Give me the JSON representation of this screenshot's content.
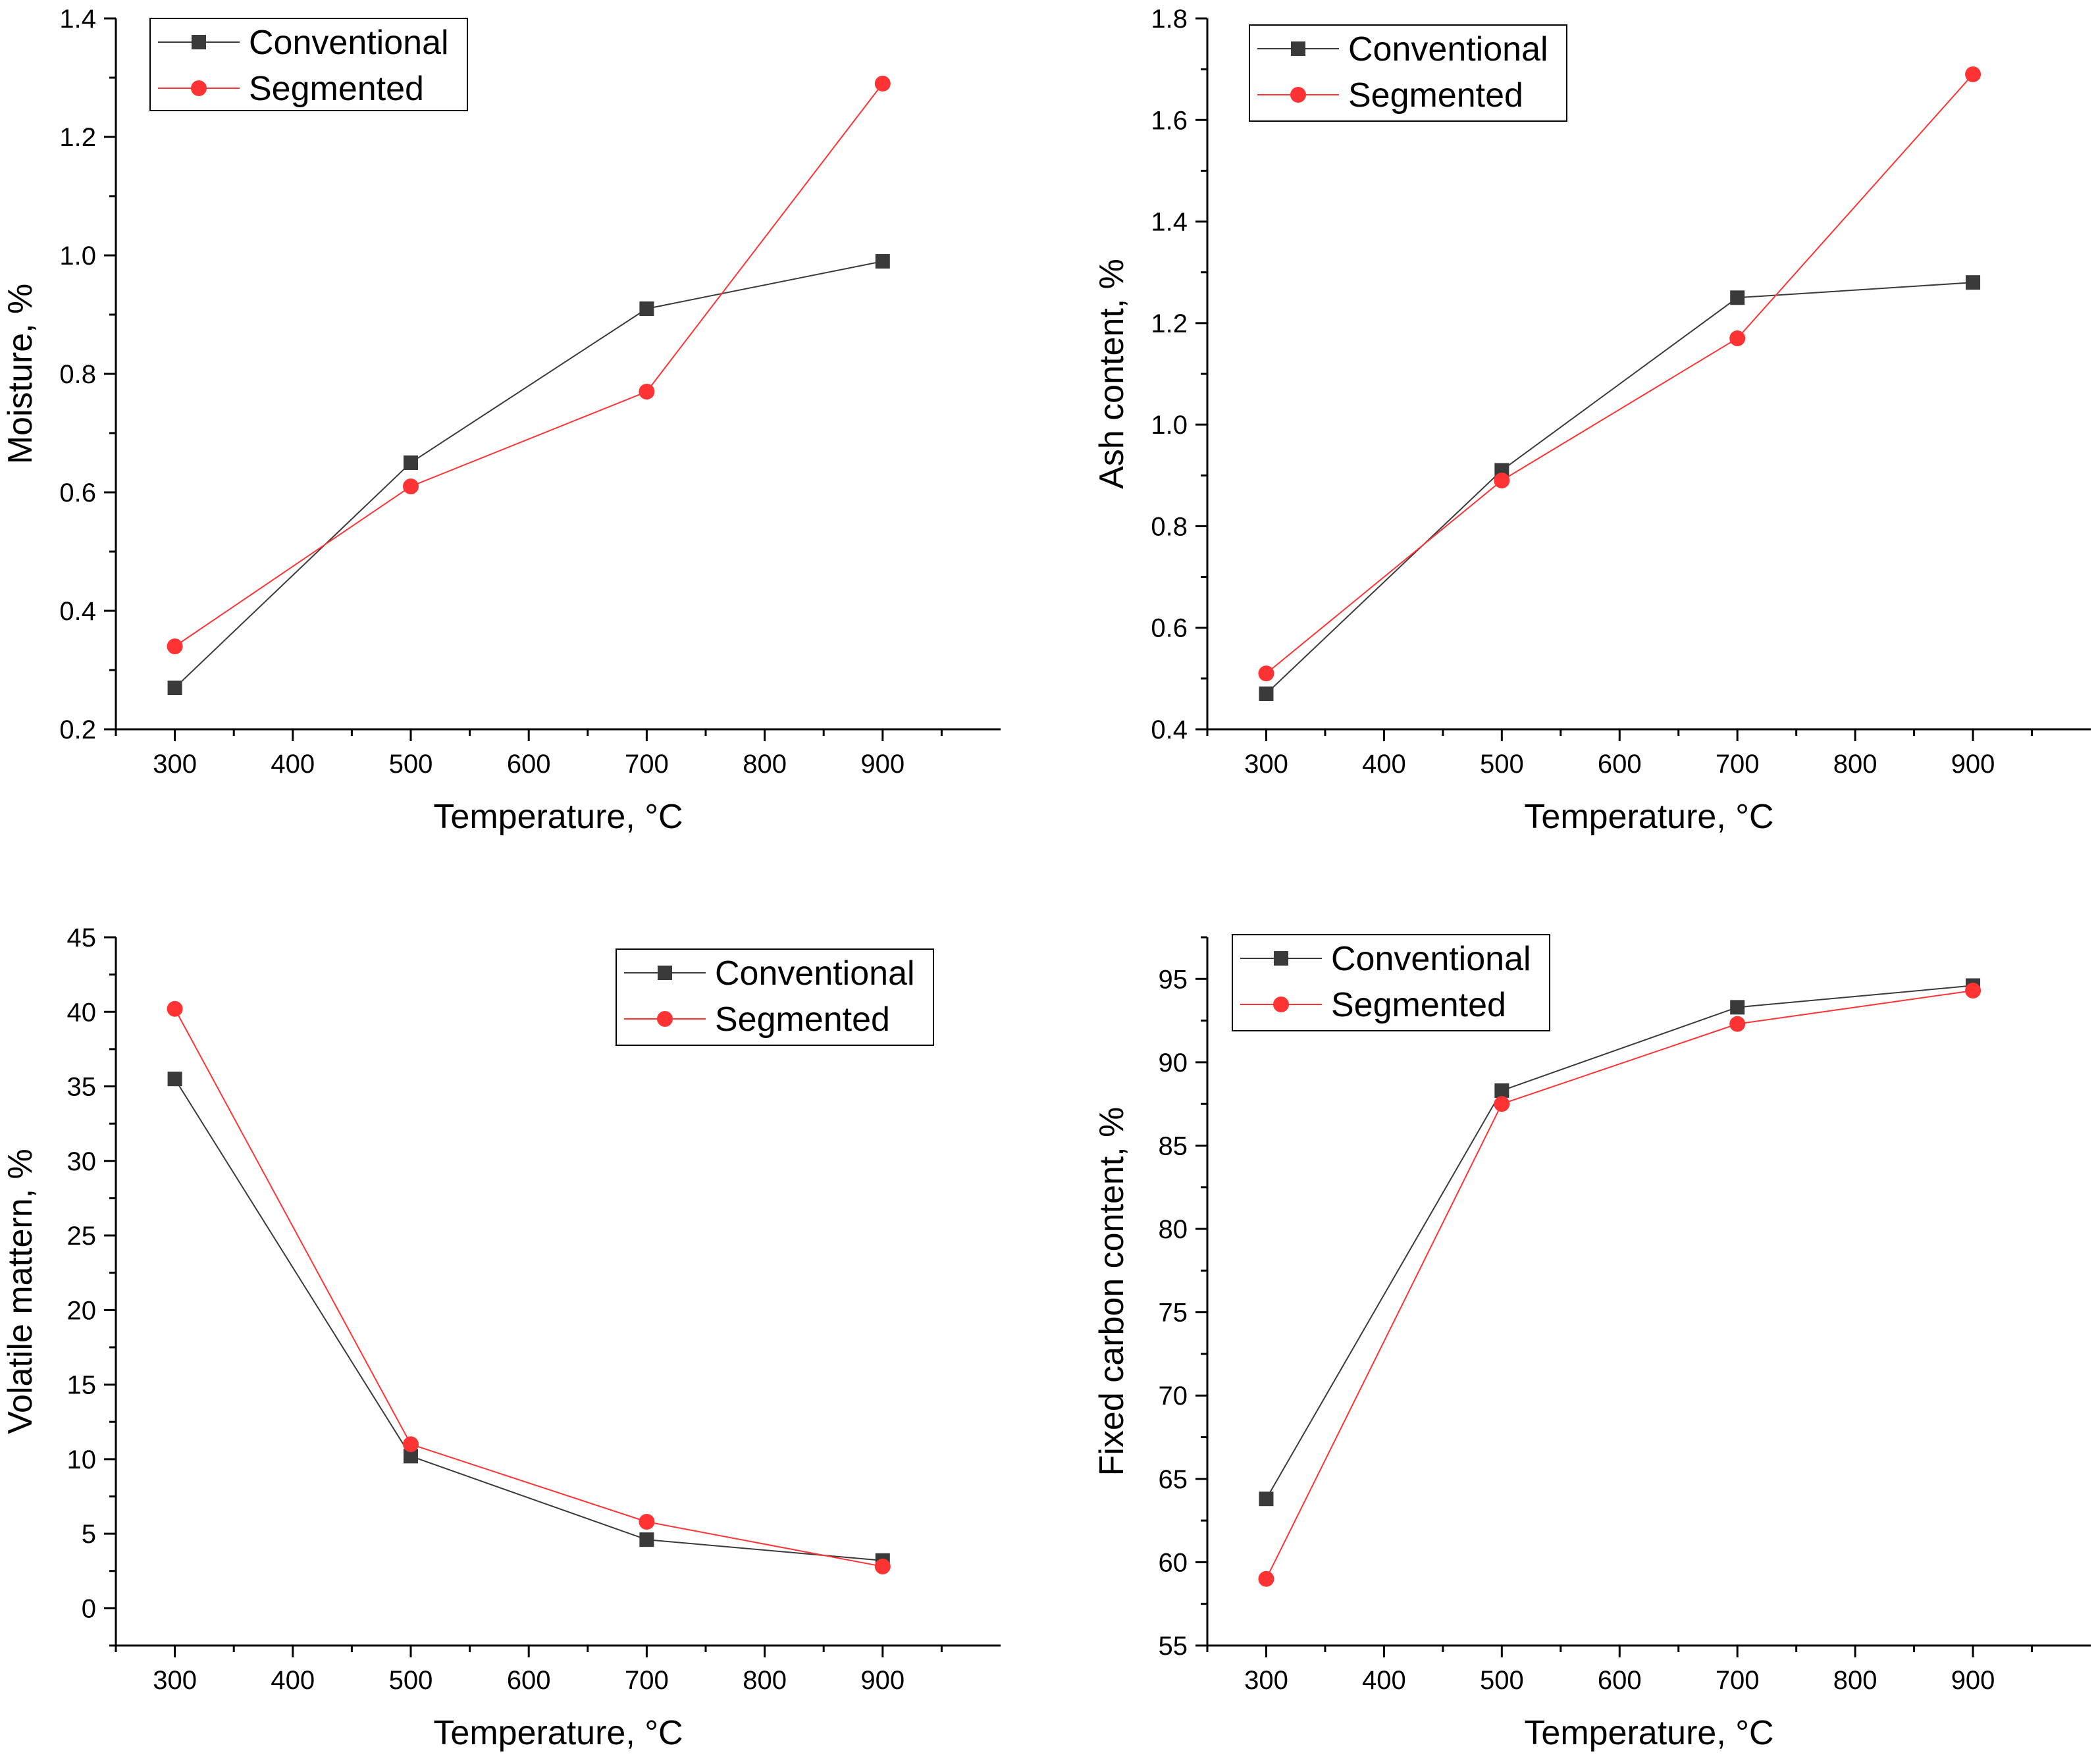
{
  "chart_data": [
    {
      "type": "line",
      "xlabel": "Temperature, °C",
      "ylabel": "Moisture, %",
      "xlim": [
        250,
        1000
      ],
      "ylim": [
        0.2,
        1.4
      ],
      "xticks": [
        300,
        400,
        500,
        600,
        700,
        800,
        900
      ],
      "yticks": [
        0.2,
        0.4,
        0.6,
        0.8,
        1.0,
        1.2,
        1.4
      ],
      "ytick_labels": [
        "0.2",
        "0.4",
        "0.6",
        "0.8",
        "1.0",
        "1.2",
        "1.4"
      ],
      "legend_position": "top-left",
      "x": [
        300,
        500,
        700,
        900
      ],
      "series": [
        {
          "name": "Conventional",
          "values": [
            0.27,
            0.65,
            0.91,
            0.99
          ],
          "color": "#3a3a3a",
          "marker": "square"
        },
        {
          "name": "Segmented",
          "values": [
            0.34,
            0.61,
            0.77,
            1.29
          ],
          "color": "#ff3333",
          "marker": "circle"
        }
      ]
    },
    {
      "type": "line",
      "xlabel": "Temperature, °C",
      "ylabel": "Ash content, %",
      "xlim": [
        250,
        1000
      ],
      "ylim": [
        0.4,
        1.8
      ],
      "xticks": [
        300,
        400,
        500,
        600,
        700,
        800,
        900
      ],
      "yticks": [
        0.4,
        0.6,
        0.8,
        1.0,
        1.2,
        1.4,
        1.6,
        1.8
      ],
      "ytick_labels": [
        "0.4",
        "0.6",
        "0.8",
        "1.0",
        "1.2",
        "1.4",
        "1.6",
        "1.8"
      ],
      "legend_position": "top-left",
      "x": [
        300,
        500,
        700,
        900
      ],
      "series": [
        {
          "name": "Conventional",
          "values": [
            0.47,
            0.91,
            1.25,
            1.28
          ],
          "color": "#3a3a3a",
          "marker": "square"
        },
        {
          "name": "Segmented",
          "values": [
            0.51,
            0.89,
            1.17,
            1.69
          ],
          "color": "#ff3333",
          "marker": "circle"
        }
      ]
    },
    {
      "type": "line",
      "xlabel": "Temperature, °C",
      "ylabel": "Volatile mattern, %",
      "xlim": [
        250,
        1000
      ],
      "ylim": [
        -2.5,
        45
      ],
      "xticks": [
        300,
        400,
        500,
        600,
        700,
        800,
        900
      ],
      "yticks": [
        0,
        5,
        10,
        15,
        20,
        25,
        30,
        35,
        40,
        45
      ],
      "ytick_labels": [
        "0",
        "5",
        "10",
        "15",
        "20",
        "25",
        "30",
        "35",
        "40",
        "45"
      ],
      "legend_position": "top-right",
      "x": [
        300,
        500,
        700,
        900
      ],
      "series": [
        {
          "name": "Conventional",
          "values": [
            35.5,
            10.2,
            4.6,
            3.2
          ],
          "color": "#3a3a3a",
          "marker": "square"
        },
        {
          "name": "Segmented",
          "values": [
            40.2,
            11.0,
            5.8,
            2.8
          ],
          "color": "#ff3333",
          "marker": "circle"
        }
      ]
    },
    {
      "type": "line",
      "xlabel": "Temperature, °C",
      "ylabel": "Fixed carbon content, %",
      "xlim": [
        250,
        1000
      ],
      "ylim": [
        55,
        97.5
      ],
      "xticks": [
        300,
        400,
        500,
        600,
        700,
        800,
        900
      ],
      "yticks": [
        55,
        60,
        65,
        70,
        75,
        80,
        85,
        90,
        95
      ],
      "ytick_labels": [
        "55",
        "60",
        "65",
        "70",
        "75",
        "80",
        "85",
        "90",
        "95"
      ],
      "legend_position": "top-left",
      "x": [
        300,
        500,
        700,
        900
      ],
      "series": [
        {
          "name": "Conventional",
          "values": [
            63.8,
            88.3,
            93.3,
            94.6
          ],
          "color": "#3a3a3a",
          "marker": "square"
        },
        {
          "name": "Segmented",
          "values": [
            59.0,
            87.5,
            92.3,
            94.3
          ],
          "color": "#ff3333",
          "marker": "circle"
        }
      ]
    }
  ]
}
